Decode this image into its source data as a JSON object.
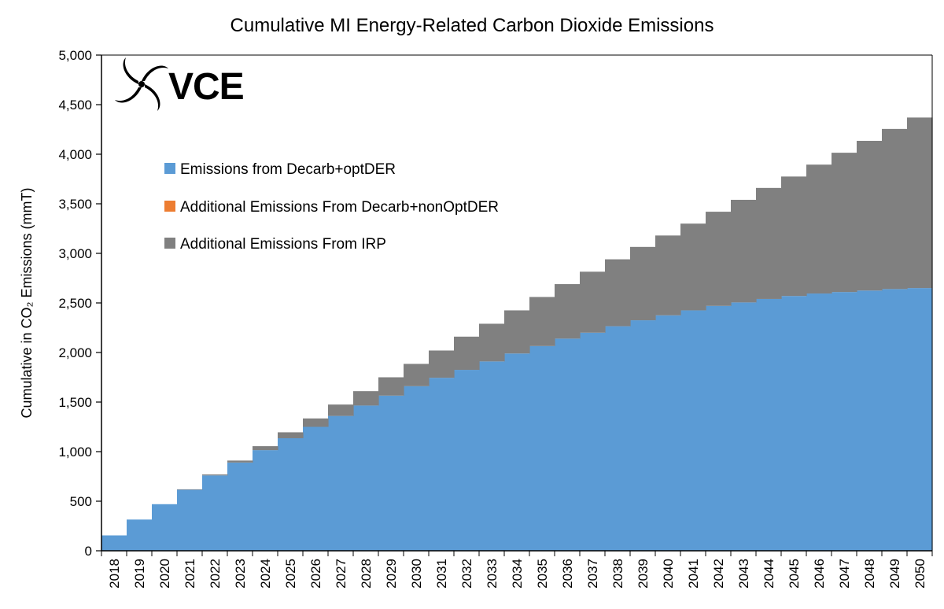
{
  "chart_data": {
    "type": "area",
    "stacked": true,
    "step": true,
    "title": "Cumulative MI Energy-Related Carbon Dioxide Emissions",
    "ylabel": "Cumulative in CO₂ Emissions (mmT)",
    "xlabel": "",
    "ylim": [
      0,
      5000
    ],
    "yticks": [
      0,
      500,
      1000,
      1500,
      2000,
      2500,
      3000,
      3500,
      4000,
      4500,
      5000
    ],
    "grid": false,
    "legend_position": "upper-left",
    "categories": [
      "2018",
      "2019",
      "2020",
      "2021",
      "2022",
      "2023",
      "2024",
      "2025",
      "2026",
      "2027",
      "2028",
      "2029",
      "2030",
      "2031",
      "2032",
      "2033",
      "2034",
      "2035",
      "2036",
      "2037",
      "2038",
      "2039",
      "2040",
      "2041",
      "2042",
      "2043",
      "2044",
      "2045",
      "2046",
      "2047",
      "2048",
      "2049",
      "2050"
    ],
    "series": [
      {
        "name": "Emissions from Decarb+optDER",
        "color": "#5b9bd5",
        "values": [
          155,
          315,
          470,
          615,
          760,
          890,
          1015,
          1135,
          1250,
          1360,
          1465,
          1565,
          1660,
          1745,
          1825,
          1910,
          1990,
          2065,
          2140,
          2200,
          2265,
          2325,
          2375,
          2425,
          2470,
          2505,
          2540,
          2570,
          2595,
          2610,
          2625,
          2640,
          2650
        ]
      },
      {
        "name": "Additional Emissions From Decarb+nonOptDER",
        "color": "#ed7d31",
        "values": [
          0,
          0,
          0,
          0,
          0,
          0,
          0,
          0,
          0,
          0,
          0,
          0,
          0,
          0,
          0,
          0,
          0,
          0,
          0,
          0,
          0,
          0,
          0,
          0,
          0,
          0,
          0,
          0,
          0,
          0,
          0,
          0,
          0
        ]
      },
      {
        "name": "Additional Emissions From IRP",
        "color": "#808080",
        "values": [
          0,
          0,
          0,
          5,
          10,
          20,
          40,
          60,
          85,
          115,
          145,
          185,
          225,
          275,
          335,
          380,
          435,
          495,
          550,
          615,
          675,
          740,
          805,
          875,
          950,
          1035,
          1120,
          1205,
          1300,
          1405,
          1510,
          1615,
          1720
        ]
      }
    ]
  },
  "logo": {
    "text": "VCE",
    "icon": "swirl-logo-icon"
  }
}
